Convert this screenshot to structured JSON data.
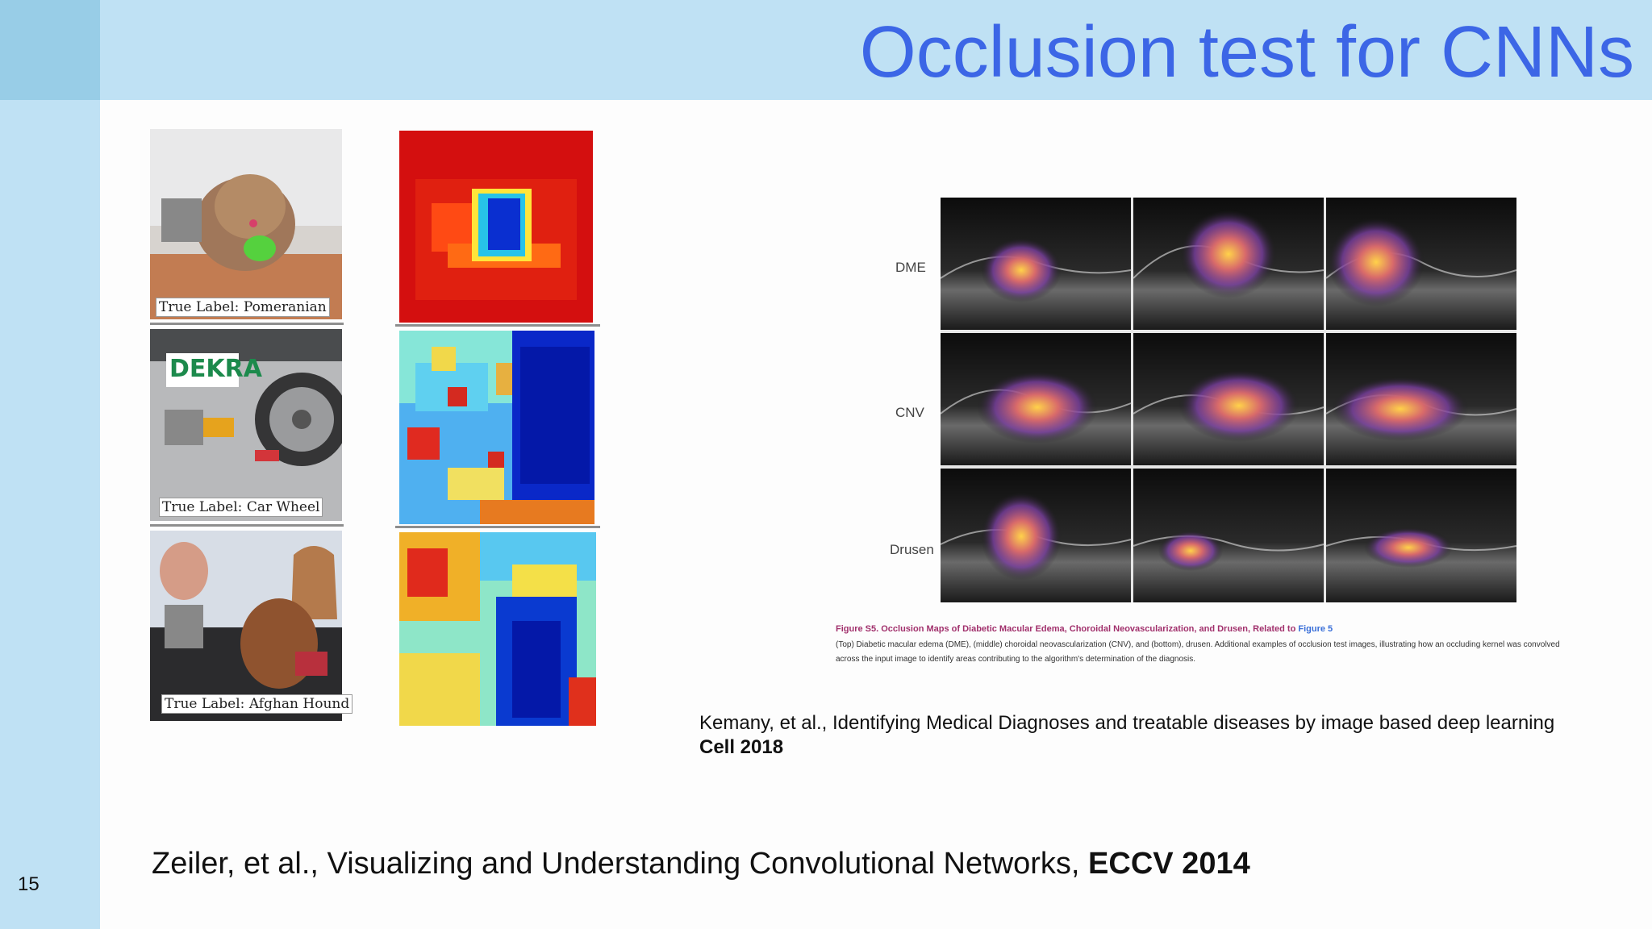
{
  "slide": {
    "title": "Occlusion test for CNNs",
    "page_number": "15"
  },
  "zeiler_figure": {
    "labels": [
      "True Label: Pomeranian",
      "True Label: Car Wheel",
      "True Label: Afghan Hound"
    ],
    "car_text": "DEKRA"
  },
  "oct_figure": {
    "row_labels": [
      "DME",
      "CNV",
      "Drusen"
    ],
    "caption_title": "Figure S5. Occlusion Maps of Diabetic Macular Edema, Choroidal Neovascularization, and Drusen, Related to ",
    "caption_title_link": "Figure 5",
    "caption_body": "(Top) Diabetic macular edema (DME), (middle) choroidal neovascularization (CNV), and (bottom), drusen. Additional examples of occlusion test images, illustrating how an occluding kernel was convolved across the input image to identify areas contributing to the algorithm's determination of the diagnosis."
  },
  "citations": {
    "kermany_text": "Kemany, et al., Identifying Medical Diagnoses and treatable diseases by image based deep learning",
    "kermany_venue": "Cell 2018",
    "zeiler_text": "Zeiler, et al., Visualizing and Understanding Convolutional Networks, ",
    "zeiler_venue": "ECCV 2014"
  },
  "colors": {
    "title": "#3c66e6",
    "bar": "#bfe1f4",
    "corner": "#98cde7"
  }
}
